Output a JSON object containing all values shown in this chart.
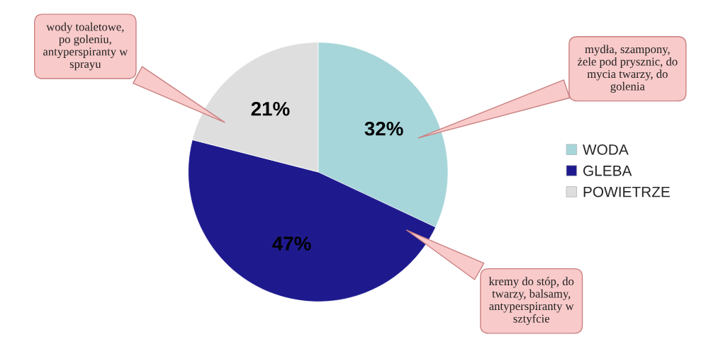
{
  "chart_data": {
    "type": "pie",
    "categories": [
      "WODA",
      "GLEBA",
      "POWIETRZE"
    ],
    "values": [
      32,
      47,
      21
    ],
    "colors": [
      "#a6d6da",
      "#1e1a8e",
      "#dedede"
    ],
    "value_labels": [
      "32%",
      "47%",
      "21%"
    ],
    "legend": "right",
    "annotations": [
      "mydła, szampony,\nżele pod prysznic, do\nmycia twarzy, do\ngolenia",
      "kremy do stóp, do\ntwarzy, balsamy,\nantyperspiranty w\nsztyfcie",
      "wody toaletowe,\npo goleniu,\nantyperspiranty w\nsprayu"
    ]
  }
}
